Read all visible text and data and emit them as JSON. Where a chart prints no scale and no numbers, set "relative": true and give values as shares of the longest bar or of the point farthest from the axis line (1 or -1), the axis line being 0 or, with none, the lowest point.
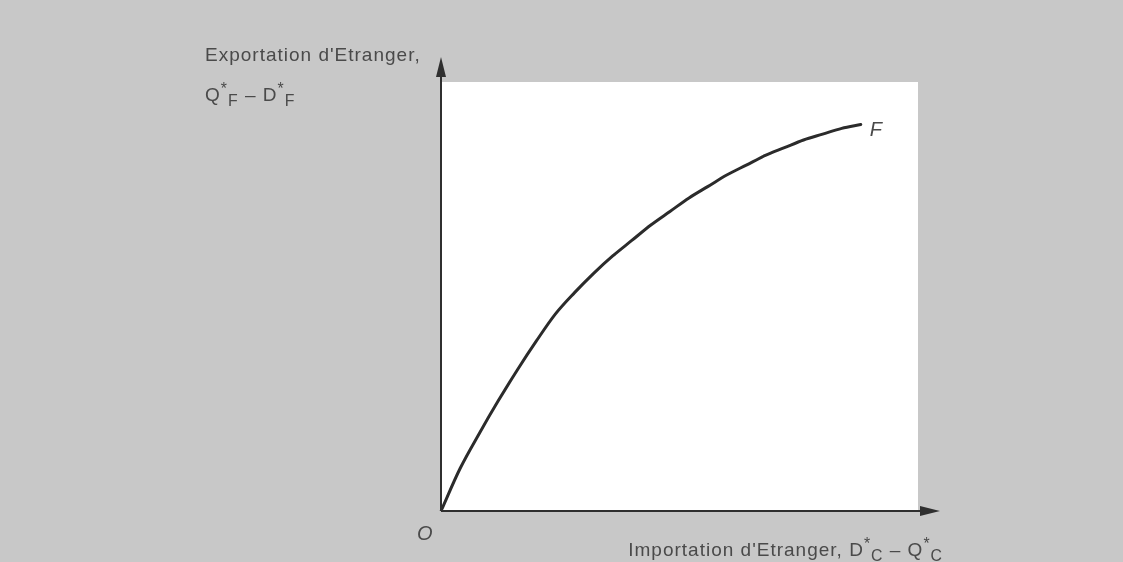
{
  "chart_data": {
    "type": "line",
    "relative": true,
    "xlabel": "Importation d'Etranger, D$^{*}$$_{C}$ – Q$^{*}$$_{C}$",
    "ylabel": "Exportation d'Etranger, Q$^{*}$$_{F}$ – D$^{*}$$_{F}$",
    "categories": [
      null,
      null,
      null,
      null,
      null,
      null,
      null,
      null,
      null,
      null,
      null,
      null,
      null,
      null,
      null,
      null,
      null,
      null,
      null,
      null,
      null,
      null,
      null,
      null,
      null,
      null
    ],
    "series": [
      {
        "color": "#2b2b2b",
        "values": [
          0,
          0.11,
          0.2,
          0.285,
          0.365,
          0.44,
          0.51,
          0.565,
          0.615,
          0.66,
          0.7,
          0.74,
          0.775,
          0.81,
          0.84,
          0.87,
          0.895,
          0.92,
          0.94,
          0.96,
          0.975,
          0.99,
          1,
          null,
          null,
          null
        ]
      }
    ],
    "annotations": [
      "O",
      "F"
    ]
  }
}
